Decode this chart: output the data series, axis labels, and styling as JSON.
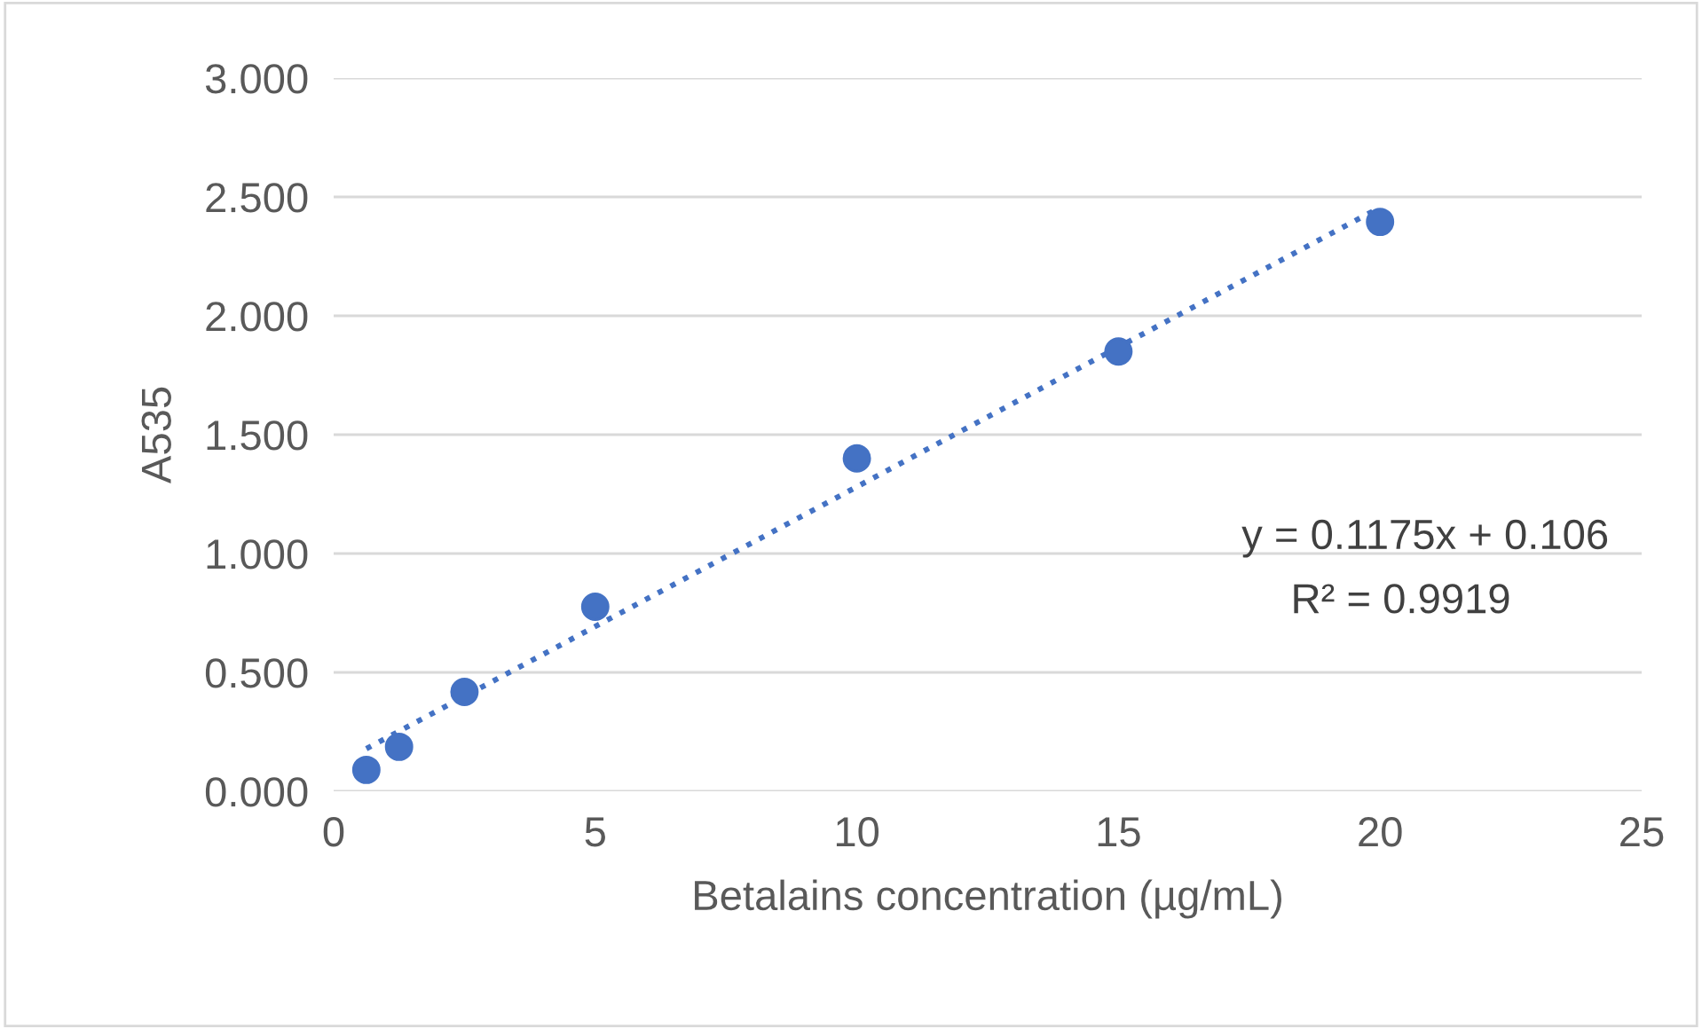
{
  "chart_data": {
    "type": "scatter",
    "xlabel": "Betalains concentration (µg/mL)",
    "ylabel": "A535",
    "series": [
      {
        "color": "#4472c4",
        "x": [
          0.625,
          1.25,
          2.5,
          5,
          10,
          15,
          20
        ],
        "values": [
          0.09,
          0.187,
          0.418,
          0.776,
          1.4,
          1.85,
          2.395
        ],
        "marker": "circle"
      },
      {
        "type": "line",
        "color": "#4472c4",
        "x": [
          0.625,
          20
        ],
        "values": [
          0.179,
          2.456
        ],
        "line_style": "dotted",
        "marker": "none"
      }
    ],
    "annotations": [
      "y = 0.1175x + 0.106",
      "R² = 0.9919"
    ],
    "xlim": [
      0,
      25
    ],
    "xticks": [
      0,
      5,
      10,
      15,
      20,
      25
    ],
    "ylim": [
      0,
      3
    ],
    "yticks": [
      {
        "value": 0,
        "label": "0.000"
      },
      {
        "value": 0.5,
        "label": "0.500"
      },
      {
        "value": 1,
        "label": "1.000"
      },
      {
        "value": 1.5,
        "label": "1.500"
      },
      {
        "value": 2,
        "label": "2.000"
      },
      {
        "value": 2.5,
        "label": "2.500"
      },
      {
        "value": 3,
        "label": "3.000"
      }
    ],
    "grid": "y",
    "legend": false
  }
}
